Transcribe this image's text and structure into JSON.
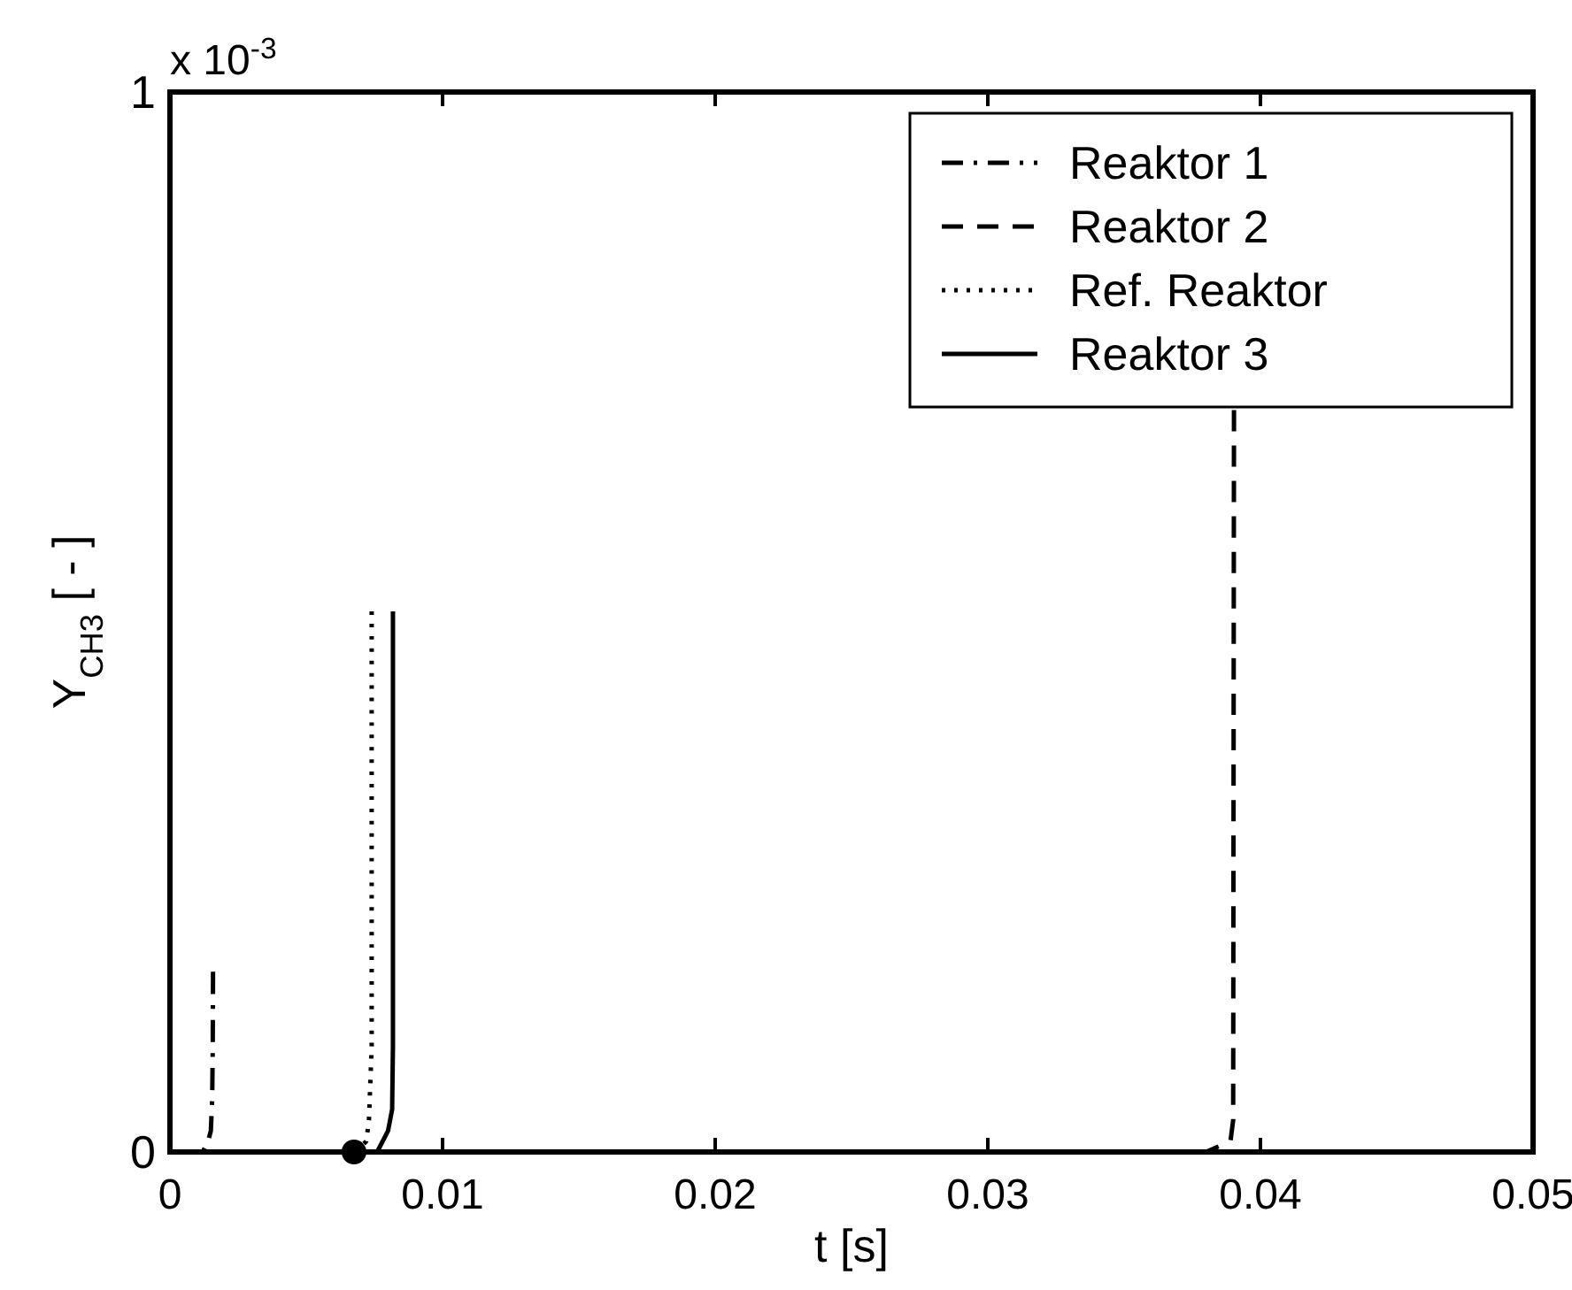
{
  "chart_data": {
    "type": "line",
    "xlabel": "t [s]",
    "ylabel": "Y$_{CH3}$ [ - ]",
    "annotations": [
      "x 10$^{-3}$"
    ],
    "xlim": [
      0,
      0.05
    ],
    "xticks": [
      0,
      0.01,
      0.02,
      0.03,
      0.04,
      0.05
    ],
    "ylim": [
      0,
      1
    ],
    "yticks": [
      0,
      1
    ],
    "grid": false,
    "legend": "top right",
    "series": [
      {
        "name": "Reaktor 1",
        "color": "#000000",
        "line_style": "dashdot",
        "x": [
          0,
          0.0012,
          0.0014,
          0.0015,
          0.00155,
          0.00157,
          0.00158
        ],
        "values": [
          0,
          0,
          0.01,
          0.02,
          0.05,
          0.1,
          0.17
        ]
      },
      {
        "name": "Reaktor 2",
        "color": "#000000",
        "line_style": "dashed",
        "x": [
          0,
          0.03,
          0.038,
          0.0389,
          0.039,
          0.03903
        ],
        "values": [
          0,
          0,
          0,
          0.01,
          0.03,
          0.7
        ]
      },
      {
        "name": "Ref. Reaktor",
        "color": "#000000",
        "line_style": "dotted",
        "x": [
          0,
          0.0068,
          0.0072,
          0.0073,
          0.0074,
          0.0074
        ],
        "values": [
          0,
          0,
          0.01,
          0.03,
          0.1,
          0.51
        ]
      },
      {
        "name": "Reaktor 3",
        "color": "#000000",
        "line_style": "solid",
        "x": [
          0.00675,
          0.0076,
          0.008,
          0.00815,
          0.00818,
          0.00818
        ],
        "values": [
          0,
          0,
          0.02,
          0.04,
          0.1,
          0.51
        ]
      },
      {
        "type": "scatter",
        "color": "#000000",
        "marker": "circle",
        "x": [
          0.00675
        ],
        "values": [
          0
        ]
      }
    ]
  }
}
